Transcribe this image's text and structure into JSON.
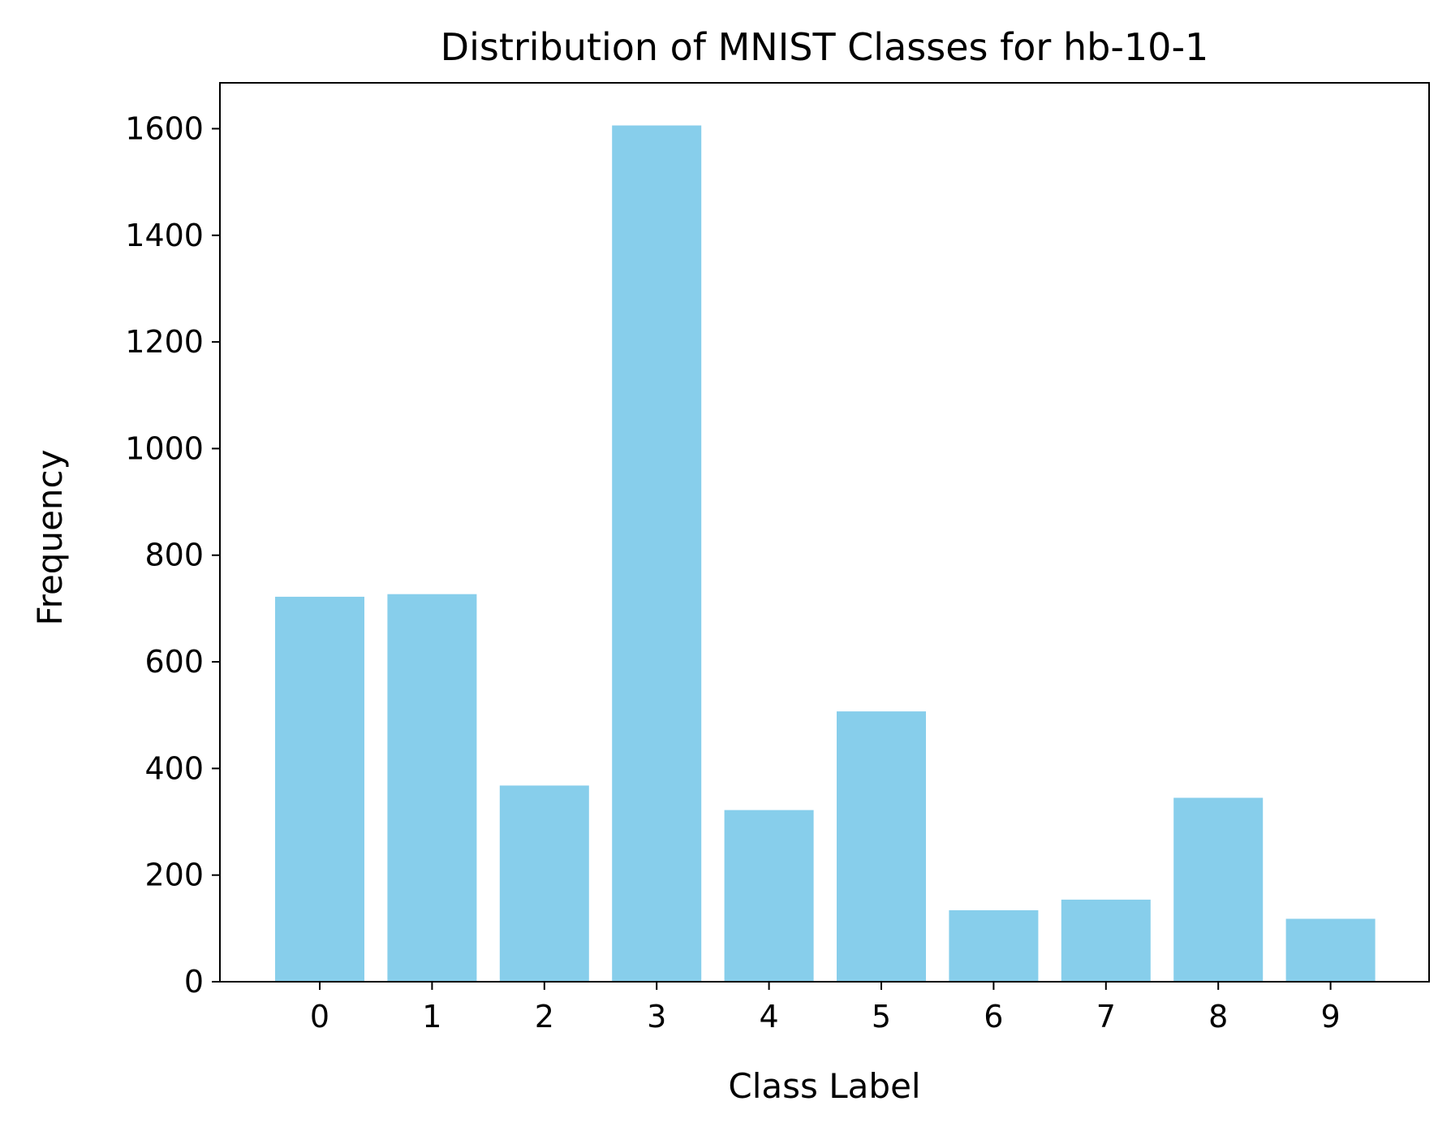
{
  "chart_data": {
    "type": "bar",
    "title": "Distribution of MNIST Classes for hb-10-1",
    "xlabel": "Class Label",
    "ylabel": "Frequency",
    "categories": [
      "0",
      "1",
      "2",
      "3",
      "4",
      "5",
      "6",
      "7",
      "8",
      "9"
    ],
    "values": [
      722,
      727,
      368,
      1606,
      322,
      507,
      134,
      154,
      345,
      118
    ],
    "ylim": [
      0,
      1686
    ],
    "yticks": [
      0,
      200,
      400,
      600,
      800,
      1000,
      1200,
      1400,
      1600
    ],
    "bar_color": "#87CEEB",
    "grid": false,
    "legend": "none"
  }
}
